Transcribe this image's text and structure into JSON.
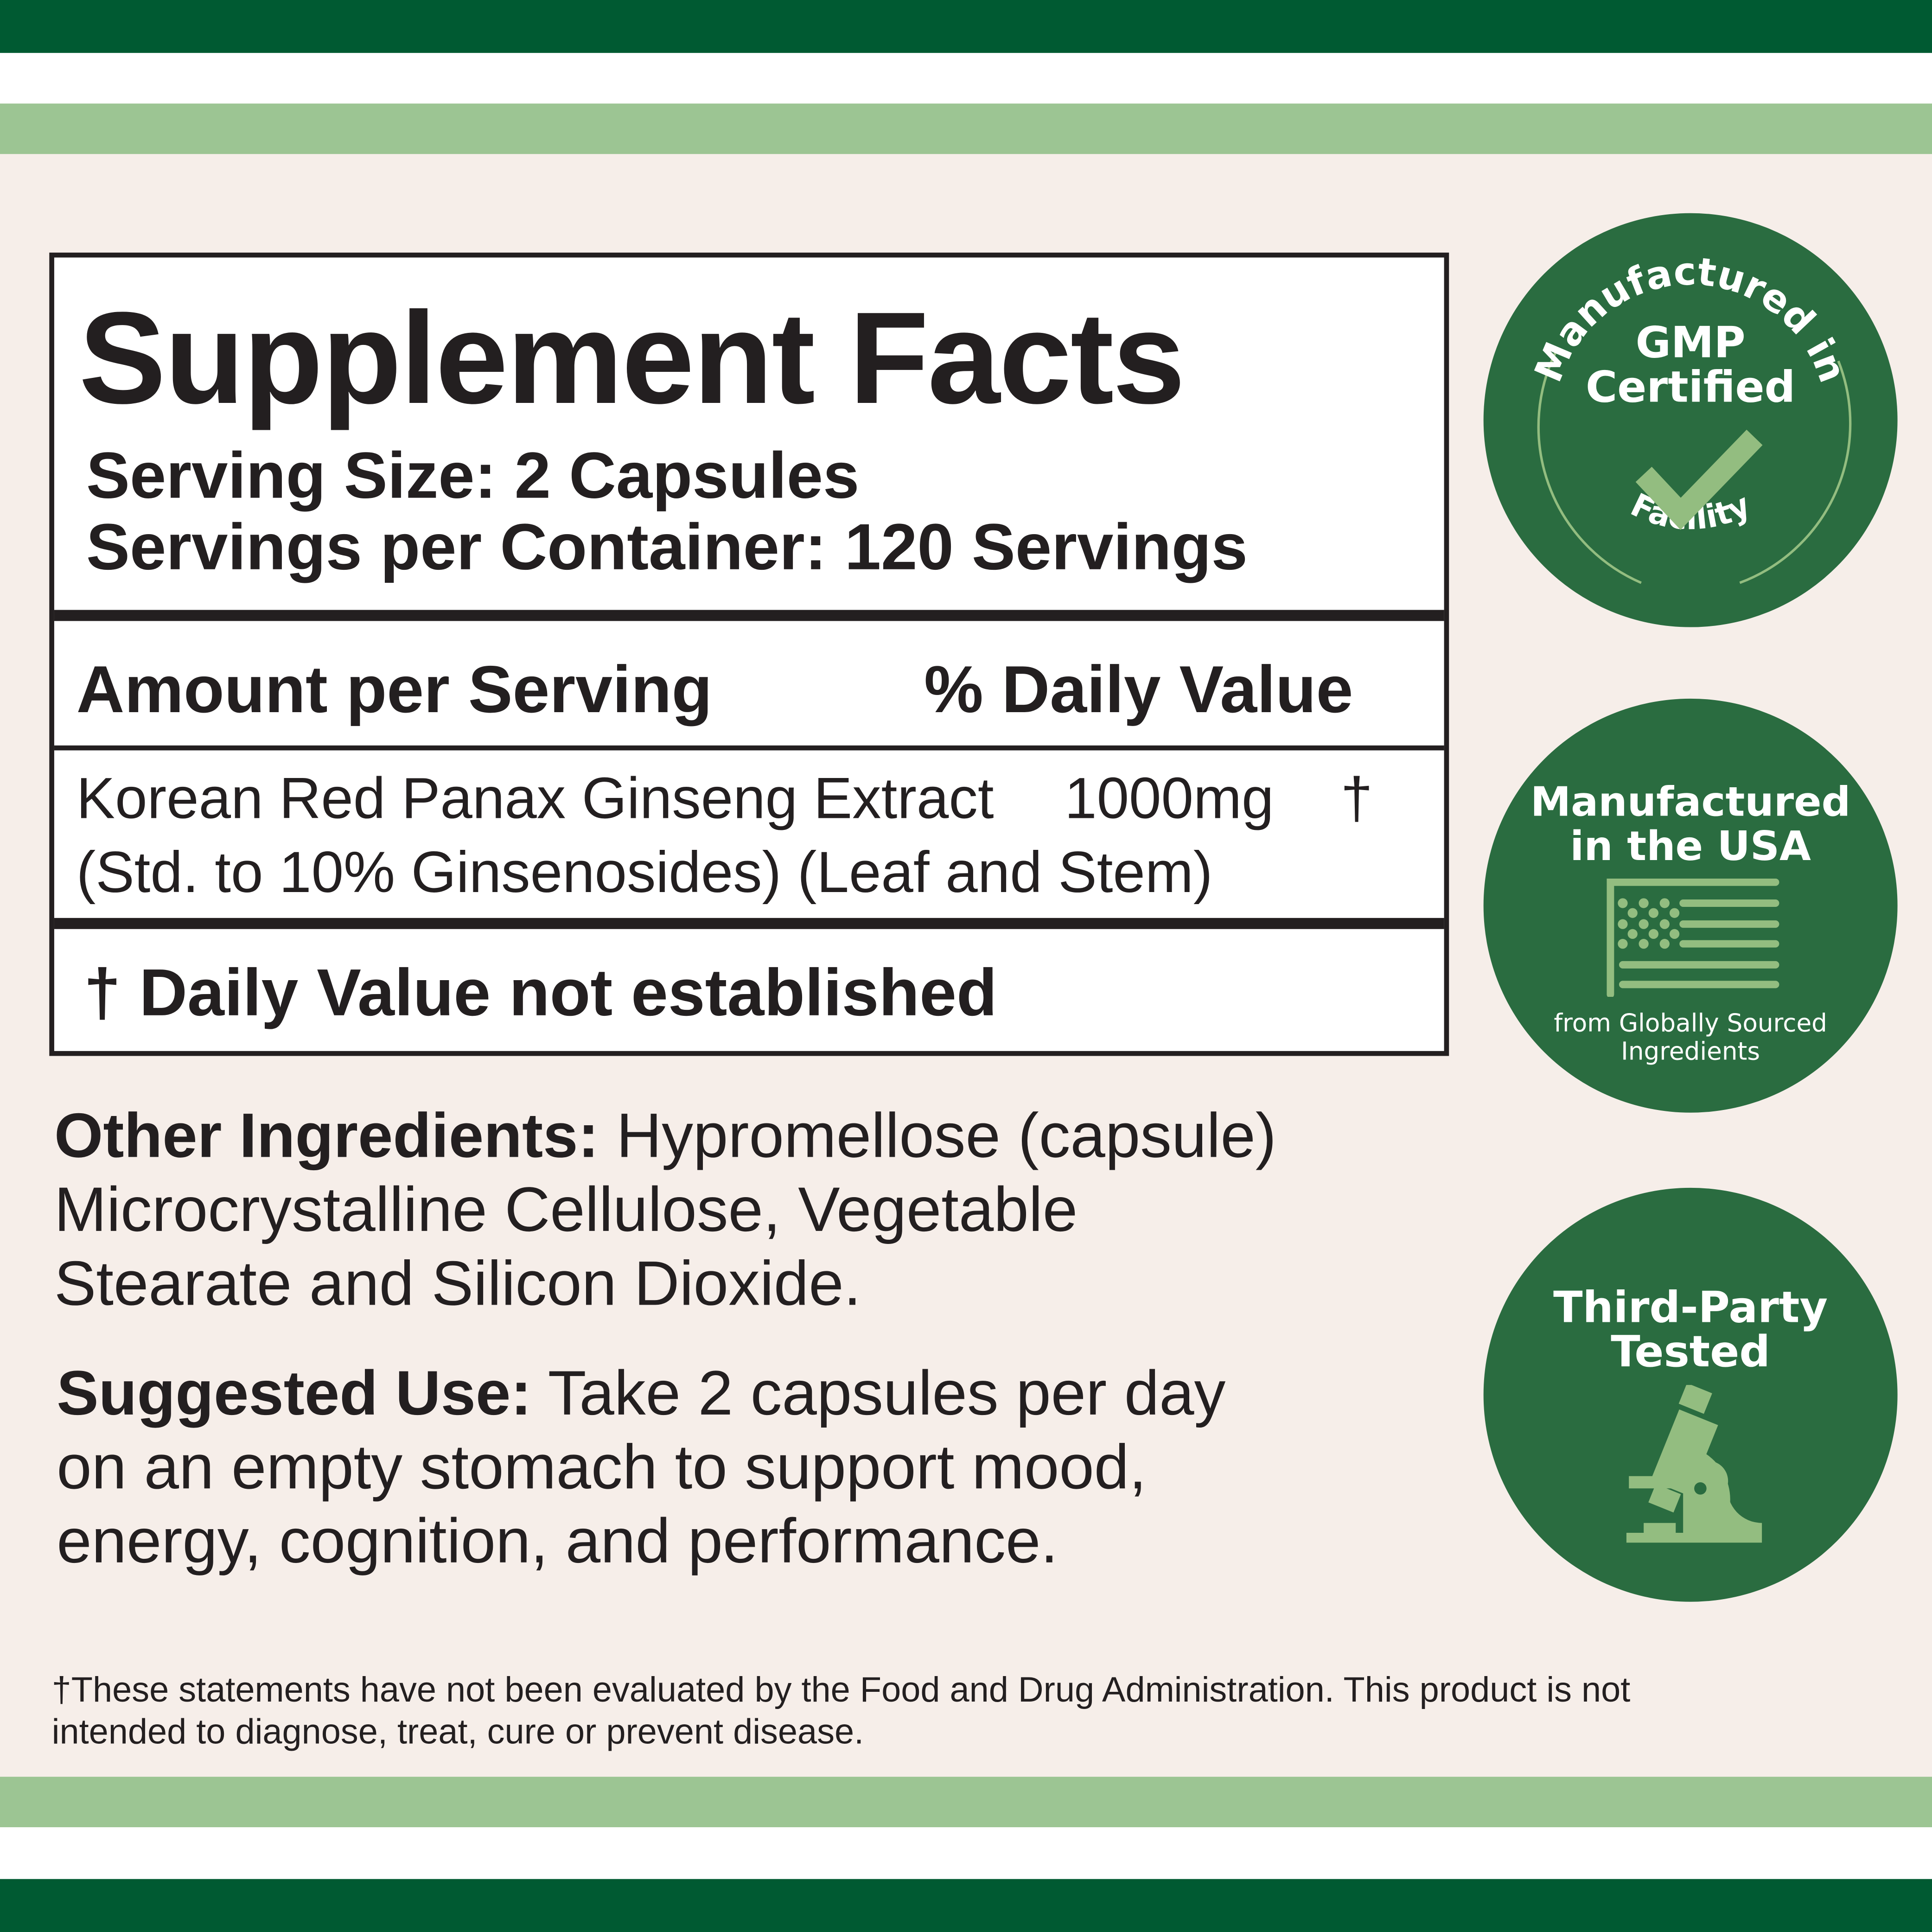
{
  "colors": {
    "dark_green": "#005a32",
    "light_green": "#9cc593",
    "badge_green": "#2a6c40",
    "icon_green": "#93bd80",
    "background": "#f6eee9",
    "text": "#231f20"
  },
  "facts": {
    "title": "Supplement Facts",
    "serving_size": "Serving Size: 2 Capsules",
    "servings_per_container": "Servings per Container: 120 Servings",
    "amount_header": "Amount per Serving",
    "dv_header": "% Daily Value",
    "ingredient": {
      "name": "Korean Red Panax Ginseng Extract",
      "amount": "1000mg",
      "dv": "†",
      "detail": "(Std. to 10% Ginsenosides) (Leaf and Stem)"
    },
    "dv_note": "† Daily Value not established"
  },
  "other": {
    "label": "Other Ingredients:",
    "lines": [
      " Hypromellose (capsule)",
      "Microcrystalline Cellulose, Vegetable",
      "Stearate and Silicon Dioxide."
    ]
  },
  "use": {
    "label": "Suggested Use:",
    "lines": [
      " Take 2 capsules per day",
      "on an empty stomach to support mood,",
      "energy, cognition, and performance."
    ]
  },
  "disclaimer": [
    "†These statements have not been evaluated by the Food and Drug Administration. This product is not",
    "intended to diagnose, treat, cure or prevent disease."
  ],
  "badges": {
    "gmp": {
      "arc_top": "Manufactured in",
      "line1": "GMP",
      "line2": "Certified",
      "arc_bottom": "Facility",
      "icon": "checkmark-icon"
    },
    "usa": {
      "line1": "Manufactured",
      "line2": "in the USA",
      "sub1": "from Globally Sourced",
      "sub2": "Ingredients",
      "icon": "us-flag-icon"
    },
    "tested": {
      "line1": "Third-Party",
      "line2": "Tested",
      "icon": "microscope-icon"
    }
  }
}
